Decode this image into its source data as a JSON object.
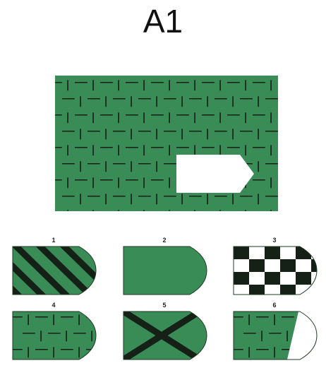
{
  "title": "A1",
  "colors": {
    "green": "#3a8c57",
    "dark": "#152016",
    "white": "#ffffff"
  },
  "options": [
    {
      "number": "1",
      "pattern": "diagonal-stripes"
    },
    {
      "number": "2",
      "pattern": "plain"
    },
    {
      "number": "3",
      "pattern": "checkerboard"
    },
    {
      "number": "4",
      "pattern": "dash-grid"
    },
    {
      "number": "5",
      "pattern": "cross"
    },
    {
      "number": "6",
      "pattern": "dash-grid-with-white-tip"
    }
  ]
}
